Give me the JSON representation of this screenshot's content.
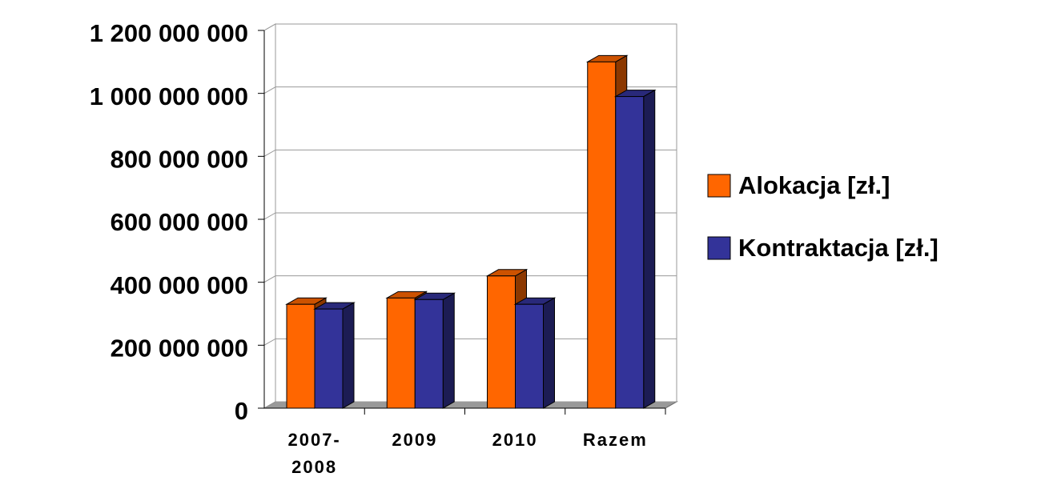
{
  "chart_data": {
    "type": "bar3d",
    "categories": [
      "2007-2008",
      "2009",
      "2010",
      "Razem"
    ],
    "series": [
      {
        "name": "Alokacja [zł.]",
        "color": "#ff6600",
        "values": [
          330000000,
          350000000,
          420000000,
          1100000000
        ]
      },
      {
        "name": "Kontraktacja [zł.]",
        "color": "#333399",
        "values": [
          315000000,
          345000000,
          330000000,
          990000000
        ]
      }
    ],
    "ylim": [
      0,
      1200000000
    ],
    "yticks": [
      0,
      {
        "value": 200000000,
        "label": "200 000 000"
      },
      {
        "value": 400000000,
        "label": "400 000 000"
      },
      {
        "value": 600000000,
        "label": "600 000 000"
      },
      {
        "value": 800000000,
        "label": "800 000 000"
      },
      {
        "value": 1000000000,
        "label": "1 000 000 000"
      },
      {
        "value": 1200000000,
        "label": "1 200 000 000"
      }
    ],
    "grid": true,
    "legend": "right"
  }
}
